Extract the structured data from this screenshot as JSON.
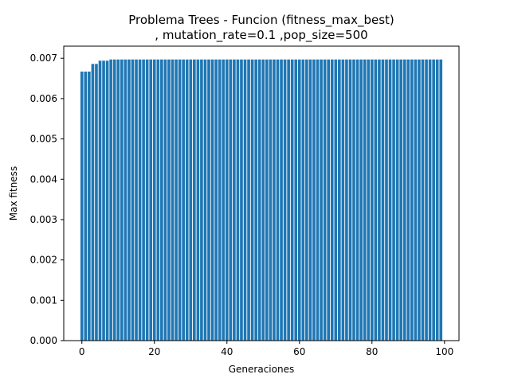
{
  "chart_data": {
    "type": "bar",
    "title": "Problema Trees - Funcion (fitness_max_best)",
    "subtitle": ", mutation_rate=0.1 ,pop_size=500",
    "xlabel": "Generaciones",
    "ylabel": "Max fitness",
    "xlim": [
      -5,
      104
    ],
    "ylim": [
      0,
      0.0073
    ],
    "xticks": [
      0,
      20,
      40,
      60,
      80,
      100
    ],
    "yticks": [
      0.0,
      0.001,
      0.002,
      0.003,
      0.004,
      0.005,
      0.006,
      0.007
    ],
    "ytick_labels": [
      "0.000",
      "0.001",
      "0.002",
      "0.003",
      "0.004",
      "0.005",
      "0.006",
      "0.007"
    ],
    "grid": false,
    "bar_color": "#1f77b4",
    "x": [
      0,
      1,
      2,
      3,
      4,
      5,
      6,
      7,
      8,
      9,
      10,
      11,
      12,
      13,
      14,
      15,
      16,
      17,
      18,
      19,
      20,
      21,
      22,
      23,
      24,
      25,
      26,
      27,
      28,
      29,
      30,
      31,
      32,
      33,
      34,
      35,
      36,
      37,
      38,
      39,
      40,
      41,
      42,
      43,
      44,
      45,
      46,
      47,
      48,
      49,
      50,
      51,
      52,
      53,
      54,
      55,
      56,
      57,
      58,
      59,
      60,
      61,
      62,
      63,
      64,
      65,
      66,
      67,
      68,
      69,
      70,
      71,
      72,
      73,
      74,
      75,
      76,
      77,
      78,
      79,
      80,
      81,
      82,
      83,
      84,
      85,
      86,
      87,
      88,
      89,
      90,
      91,
      92,
      93,
      94,
      95,
      96,
      97,
      98,
      99
    ],
    "values": [
      0.00667,
      0.00667,
      0.00667,
      0.00686,
      0.00686,
      0.00694,
      0.00694,
      0.00694,
      0.00697,
      0.00697,
      0.00697,
      0.00697,
      0.00697,
      0.00697,
      0.00697,
      0.00697,
      0.00697,
      0.00697,
      0.00697,
      0.00697,
      0.00697,
      0.00697,
      0.00697,
      0.00697,
      0.00697,
      0.00697,
      0.00697,
      0.00697,
      0.00697,
      0.00697,
      0.00697,
      0.00697,
      0.00697,
      0.00697,
      0.00697,
      0.00697,
      0.00697,
      0.00697,
      0.00697,
      0.00697,
      0.00697,
      0.00697,
      0.00697,
      0.00697,
      0.00697,
      0.00697,
      0.00697,
      0.00697,
      0.00697,
      0.00697,
      0.00697,
      0.00697,
      0.00697,
      0.00697,
      0.00697,
      0.00697,
      0.00697,
      0.00697,
      0.00697,
      0.00697,
      0.00697,
      0.00697,
      0.00697,
      0.00697,
      0.00697,
      0.00697,
      0.00697,
      0.00697,
      0.00697,
      0.00697,
      0.00697,
      0.00697,
      0.00697,
      0.00697,
      0.00697,
      0.00697,
      0.00697,
      0.00697,
      0.00697,
      0.00697,
      0.00697,
      0.00697,
      0.00697,
      0.00697,
      0.00697,
      0.00697,
      0.00697,
      0.00697,
      0.00697,
      0.00697,
      0.00697,
      0.00697,
      0.00697,
      0.00697,
      0.00697,
      0.00697,
      0.00697,
      0.00697,
      0.00697,
      0.00697
    ]
  }
}
